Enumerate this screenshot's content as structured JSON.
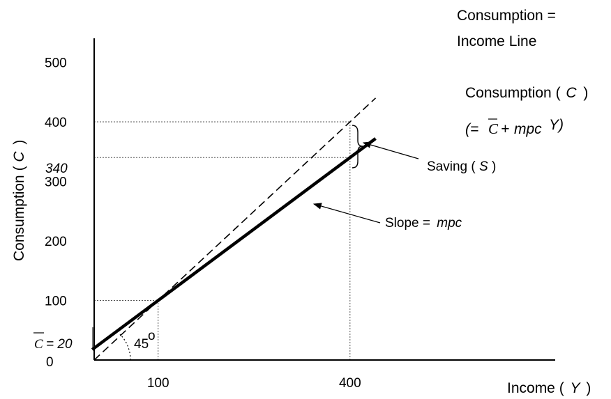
{
  "chart_data": {
    "type": "line",
    "xlabel": "Income ( Y )",
    "xlabel_text": "Income (",
    "xlabel_var": "Y",
    "xlabel_close": ")",
    "ylabel_text": "Consumption  (",
    "ylabel_var": "C",
    "ylabel_close": ")",
    "x_ticks": [
      {
        "value": 100,
        "label": "100"
      },
      {
        "value": 400,
        "label": "400"
      }
    ],
    "y_ticks": [
      {
        "value": 100,
        "label": "100"
      },
      {
        "value": 200,
        "label": "200"
      },
      {
        "value": 300,
        "label": "300"
      },
      {
        "value": 400,
        "label": "400"
      },
      {
        "value": 500,
        "label": "500"
      }
    ],
    "y_special_340": "340",
    "origin_label": "0",
    "intercept_symbol": "C",
    "intercept_text": "= 20",
    "angle_label": "45",
    "angle_degree": "o",
    "series": [
      {
        "name": "Consumption = Income Line",
        "style": "dashed",
        "points": [
          [
            0,
            0
          ],
          [
            440,
            440
          ]
        ]
      },
      {
        "name": "Consumption (C)",
        "style": "solid",
        "intercept": 20,
        "mpc": 0.8,
        "points": [
          [
            -3,
            17.6
          ],
          [
            440,
            372
          ]
        ]
      }
    ],
    "guides": [
      {
        "from": [
          0,
          100
        ],
        "to": [
          100,
          100
        ]
      },
      {
        "from": [
          100,
          0
        ],
        "to": [
          100,
          100
        ]
      },
      {
        "from": [
          0,
          400
        ],
        "to": [
          400,
          400
        ]
      },
      {
        "from": [
          0,
          340
        ],
        "to": [
          400,
          340
        ]
      },
      {
        "from": [
          400,
          0
        ],
        "to": [
          400,
          400
        ]
      }
    ],
    "annotations": {
      "ci_line_1": "Consumption =",
      "ci_line_2": "Income Line",
      "cons_label_text": "Consumption (",
      "cons_label_var": "C",
      "cons_label_close": ")",
      "formula_open": "(=",
      "formula_C": "C",
      "formula_plus": "+",
      "formula_mpc": "mpc",
      "formula_Y": "Y)",
      "saving_text": "Saving (",
      "saving_var": "S",
      "saving_close": ")",
      "slope_text": "Slope =",
      "slope_var": "mpc"
    },
    "xlim": [
      0,
      580
    ],
    "ylim": [
      0,
      540
    ]
  }
}
